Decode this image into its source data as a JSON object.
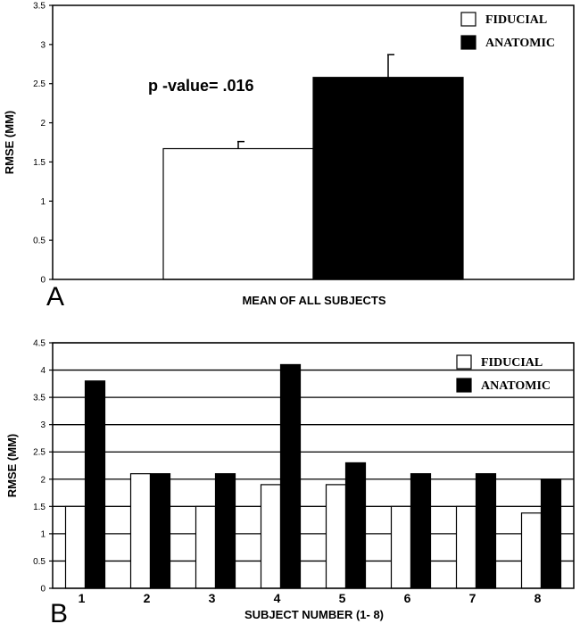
{
  "chart_data": [
    {
      "type": "bar",
      "panel": "A",
      "title": "",
      "xlabel": "MEAN OF ALL SUBJECTS",
      "ylabel": "RMSE (MM)",
      "ylim": [
        0,
        3.5
      ],
      "yticks": [
        "0",
        "0.5",
        "1",
        "1.5",
        "2",
        "2.5",
        "3",
        "3.5"
      ],
      "grid": false,
      "legend_position": "top-right",
      "categories": [
        "Mean of all subjects"
      ],
      "series": [
        {
          "name": "FIDUCIAL",
          "color": "#ffffff",
          "values": [
            1.67
          ],
          "errors": [
            0.09
          ]
        },
        {
          "name": "ANATOMIC",
          "color": "#000000",
          "values": [
            2.58
          ],
          "errors": [
            0.29
          ]
        }
      ],
      "annotation": "p -value= .016"
    },
    {
      "type": "bar",
      "panel": "B",
      "title": "",
      "xlabel": "SUBJECT NUMBER (1- 8)",
      "ylabel": "RMSE (MM)",
      "ylim": [
        0,
        4.5
      ],
      "yticks": [
        "0",
        "0.5",
        "1",
        "1.5",
        "2",
        "2.5",
        "3",
        "3.5",
        "4",
        "4.5"
      ],
      "grid": true,
      "legend_position": "top-right",
      "categories": [
        "1",
        "2",
        "3",
        "4",
        "5",
        "6",
        "7",
        "8"
      ],
      "series": [
        {
          "name": "FIDUCIAL",
          "color": "#ffffff",
          "values": [
            1.5,
            2.1,
            1.5,
            1.9,
            1.9,
            1.5,
            1.5,
            1.38
          ]
        },
        {
          "name": "ANATOMIC",
          "color": "#000000",
          "values": [
            3.8,
            2.1,
            2.1,
            4.1,
            2.3,
            2.1,
            2.1,
            2.0
          ]
        }
      ]
    }
  ]
}
